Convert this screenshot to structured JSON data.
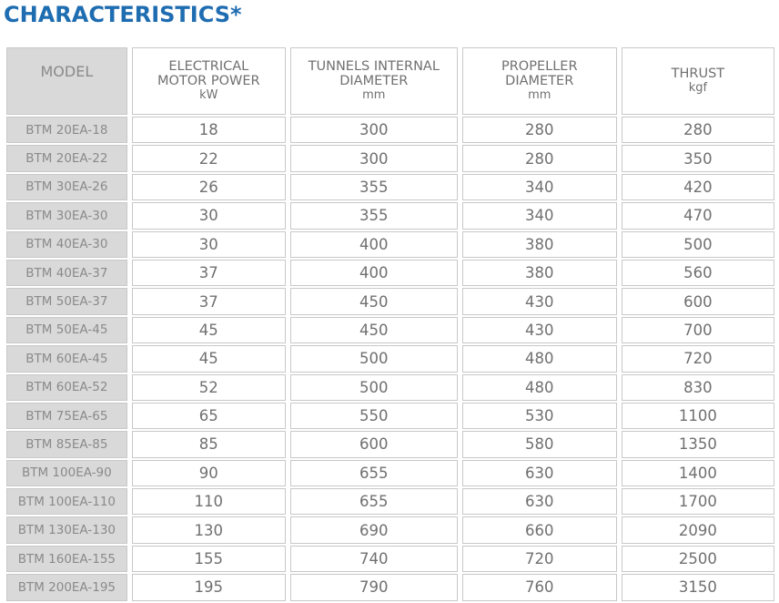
{
  "title": "CHARACTERISTICS*",
  "columns": [
    {
      "label": "MODEL",
      "unit": ""
    },
    {
      "label": "ELECTRICAL MOTOR POWER",
      "unit": "kW"
    },
    {
      "label": "TUNNELS INTERNAL DIAMETER",
      "unit": "mm"
    },
    {
      "label": "PROPELLER DIAMETER",
      "unit": "mm"
    },
    {
      "label": "THRUST",
      "unit": "kgf"
    }
  ],
  "rows": [
    [
      "BTM 20EA-18",
      "18",
      "300",
      "280",
      "280"
    ],
    [
      "BTM 20EA-22",
      "22",
      "300",
      "280",
      "350"
    ],
    [
      "BTM 30EA-26",
      "26",
      "355",
      "340",
      "420"
    ],
    [
      "BTM 30EA-30",
      "30",
      "355",
      "340",
      "470"
    ],
    [
      "BTM 40EA-30",
      "30",
      "400",
      "380",
      "500"
    ],
    [
      "BTM 40EA-37",
      "37",
      "400",
      "380",
      "560"
    ],
    [
      "BTM 50EA-37",
      "37",
      "450",
      "430",
      "600"
    ],
    [
      "BTM 50EA-45",
      "45",
      "450",
      "430",
      "700"
    ],
    [
      "BTM 60EA-45",
      "45",
      "500",
      "480",
      "720"
    ],
    [
      "BTM 60EA-52",
      "52",
      "500",
      "480",
      "830"
    ],
    [
      "BTM 75EA-65",
      "65",
      "550",
      "530",
      "1100"
    ],
    [
      "BTM 85EA-85",
      "85",
      "600",
      "580",
      "1350"
    ],
    [
      "BTM 100EA-90",
      "90",
      "655",
      "630",
      "1400"
    ],
    [
      "BTM 100EA-110",
      "110",
      "655",
      "630",
      "1700"
    ],
    [
      "BTM 130EA-130",
      "130",
      "690",
      "660",
      "2090"
    ],
    [
      "BTM 160EA-155",
      "155",
      "740",
      "720",
      "2500"
    ],
    [
      "BTM 200EA-195",
      "195",
      "790",
      "760",
      "3150"
    ]
  ],
  "colors": {
    "title": "#1f6db1",
    "model_bg": "#d9d9d9",
    "text": "#707070"
  }
}
